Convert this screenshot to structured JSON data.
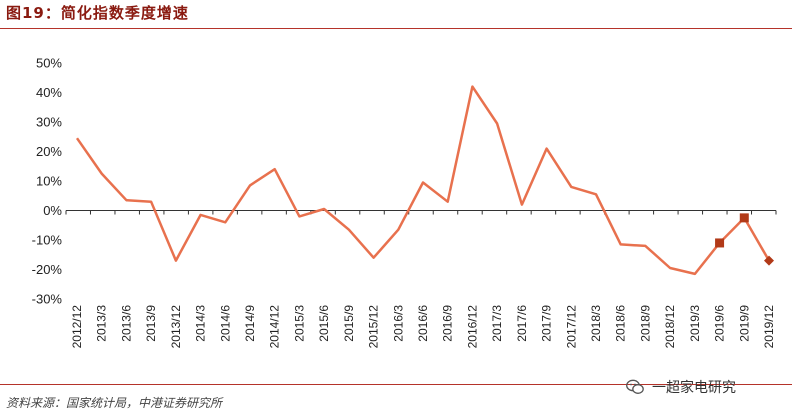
{
  "header": {
    "title": "图19：简化指数季度增速"
  },
  "footer": {
    "source": "资料来源：国家统计局，中港证券研究所",
    "watermark": "一超家电研究"
  },
  "colors": {
    "line": "#e8714e",
    "marker": "#b23a18",
    "title": "#8a1a10",
    "rule": "#b5332a"
  },
  "chart_data": {
    "type": "line",
    "title": "",
    "xlabel": "",
    "ylabel": "",
    "ylim": [
      -30,
      50
    ],
    "y_ticks": [
      "50%",
      "40%",
      "30%",
      "20%",
      "10%",
      "0%",
      "-10%",
      "-20%",
      "-30%"
    ],
    "grid": false,
    "categories": [
      "2012/12",
      "2013/3",
      "2013/6",
      "2013/9",
      "2013/12",
      "2014/3",
      "2014/6",
      "2014/9",
      "2014/12",
      "2015/3",
      "2015/6",
      "2015/9",
      "2015/12",
      "2016/3",
      "2016/6",
      "2016/9",
      "2016/12",
      "2017/3",
      "2017/6",
      "2017/9",
      "2017/12",
      "2018/3",
      "2018/6",
      "2018/9",
      "2018/12",
      "2019/3",
      "2019/6",
      "2019/9",
      "2019/12"
    ],
    "series": [
      {
        "values": [
          24.5,
          12.5,
          3.5,
          3.0,
          -17.0,
          -1.5,
          -4.0,
          8.5,
          14.0,
          -2.0,
          0.5,
          -6.5,
          -16.0,
          -6.5,
          9.5,
          3.0,
          42.0,
          29.5,
          2.0,
          21.0,
          8.0,
          5.5,
          -11.5,
          -12.0,
          -19.5,
          -21.5,
          -11.0,
          -2.5,
          -17.0
        ]
      }
    ],
    "highlighted_points": [
      {
        "category": "2019/6",
        "value": -11.0,
        "marker": "square"
      },
      {
        "category": "2019/9",
        "value": -2.5,
        "marker": "square"
      },
      {
        "category": "2019/12",
        "value": -17.0,
        "marker": "diamond"
      }
    ]
  }
}
